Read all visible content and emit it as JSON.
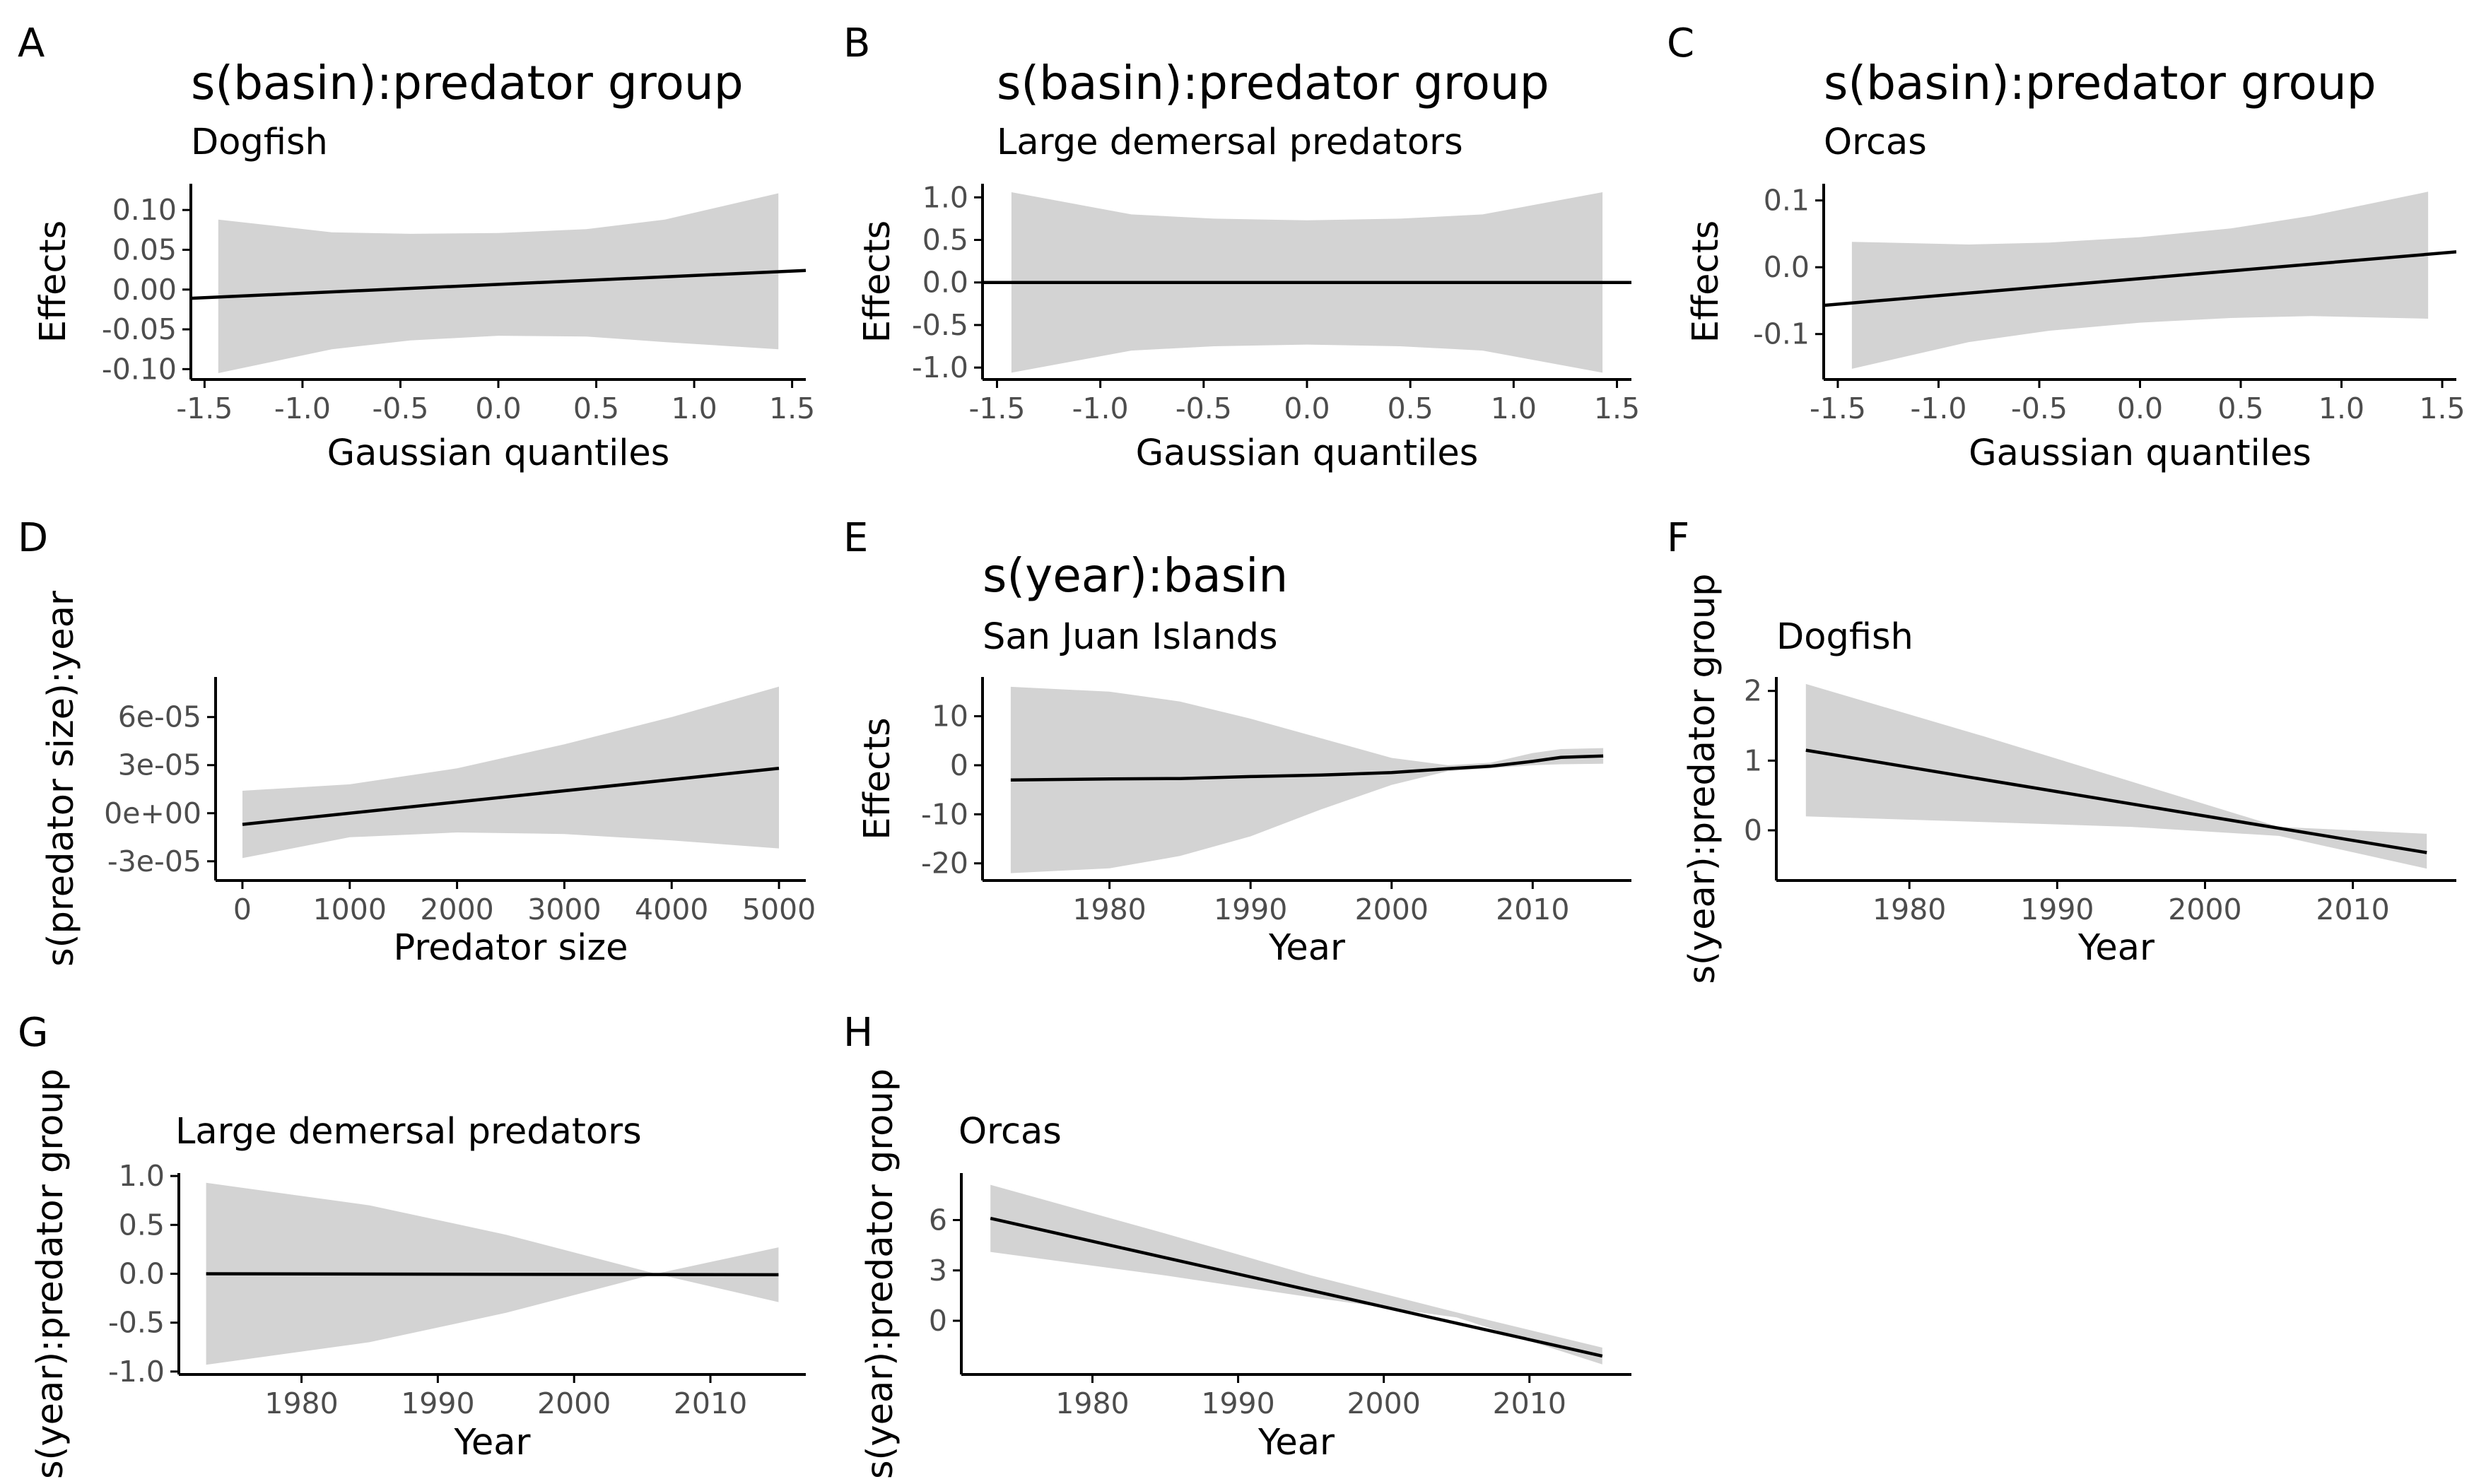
{
  "colors": {
    "band": "#d3d3d3",
    "line": "#000000",
    "axis": "#000000",
    "tick_text": "#4d4d4d"
  },
  "chart_data": [
    {
      "tag": "A",
      "type": "line",
      "title": "s(basin):predator group",
      "subtitle": "Dogfish",
      "xlabel": "Gaussian quantiles",
      "ylabel": "Effects",
      "xlim": [
        -1.57,
        1.57
      ],
      "ylim": [
        -0.113,
        0.133
      ],
      "xticks": [
        -1.5,
        -1.0,
        -0.5,
        0.0,
        0.5,
        1.0,
        1.5
      ],
      "xtick_labels": [
        "-1.5",
        "-1.0",
        "-0.5",
        "0.0",
        "0.5",
        "1.0",
        "1.5"
      ],
      "yticks": [
        -0.1,
        -0.05,
        0.0,
        0.05,
        0.1
      ],
      "ytick_labels": [
        "-0.10",
        "-0.05",
        "0.00",
        "0.05",
        "0.10"
      ],
      "line": {
        "x": [
          -1.57,
          1.57
        ],
        "y": [
          -0.011,
          0.024
        ]
      },
      "band": {
        "x": [
          -1.43,
          -0.85,
          -0.45,
          0.0,
          0.45,
          0.85,
          1.43
        ],
        "upper": [
          0.088,
          0.072,
          0.07,
          0.071,
          0.076,
          0.088,
          0.121
        ],
        "lower": [
          -0.105,
          -0.075,
          -0.064,
          -0.058,
          -0.059,
          -0.066,
          -0.075
        ]
      }
    },
    {
      "tag": "B",
      "type": "line",
      "title": "s(basin):predator group",
      "subtitle": "Large demersal predators",
      "xlabel": "Gaussian quantiles",
      "ylabel": "Effects",
      "xlim": [
        -1.57,
        1.57
      ],
      "ylim": [
        -1.14,
        1.16
      ],
      "xticks": [
        -1.5,
        -1.0,
        -0.5,
        0.0,
        0.5,
        1.0,
        1.5
      ],
      "xtick_labels": [
        "-1.5",
        "-1.0",
        "-0.5",
        "0.0",
        "0.5",
        "1.0",
        "1.5"
      ],
      "yticks": [
        -1.0,
        -0.5,
        0.0,
        0.5,
        1.0
      ],
      "ytick_labels": [
        "-1.0",
        "-0.5",
        "0.0",
        "0.5",
        "1.0"
      ],
      "line": {
        "x": [
          -1.57,
          1.57
        ],
        "y": [
          0.0,
          0.0
        ]
      },
      "band": {
        "x": [
          -1.43,
          -0.85,
          -0.45,
          0.0,
          0.45,
          0.85,
          1.43
        ],
        "upper": [
          1.06,
          0.8,
          0.75,
          0.73,
          0.75,
          0.8,
          1.06
        ],
        "lower": [
          -1.06,
          -0.8,
          -0.75,
          -0.73,
          -0.75,
          -0.8,
          -1.06
        ]
      }
    },
    {
      "tag": "C",
      "type": "line",
      "title": "s(basin):predator group",
      "subtitle": "Orcas",
      "xlabel": "Gaussian quantiles",
      "ylabel": "Effects",
      "xlim": [
        -1.57,
        1.57
      ],
      "ylim": [
        -0.168,
        0.125
      ],
      "xticks": [
        -1.5,
        -1.0,
        -0.5,
        0.0,
        0.5,
        1.0,
        1.5
      ],
      "xtick_labels": [
        "-1.5",
        "-1.0",
        "-0.5",
        "0.0",
        "0.5",
        "1.0",
        "1.5"
      ],
      "yticks": [
        -0.1,
        0.0,
        0.1
      ],
      "ytick_labels": [
        "-0.1",
        "0.0",
        "0.1"
      ],
      "line": {
        "x": [
          -1.57,
          1.57
        ],
        "y": [
          -0.057,
          0.023
        ]
      },
      "band": {
        "x": [
          -1.43,
          -0.85,
          -0.45,
          0.0,
          0.45,
          0.85,
          1.43
        ],
        "upper": [
          0.038,
          0.034,
          0.037,
          0.045,
          0.058,
          0.077,
          0.113
        ],
        "lower": [
          -0.152,
          -0.112,
          -0.095,
          -0.083,
          -0.076,
          -0.073,
          -0.077
        ]
      }
    },
    {
      "tag": "D",
      "type": "line",
      "title": "",
      "subtitle": "",
      "xlabel": "Predator size",
      "ylabel": "s(predator size):year",
      "xlim": [
        -250,
        5250
      ],
      "ylim": [
        -4.2e-05,
        8.5e-05
      ],
      "xticks": [
        0,
        1000,
        2000,
        3000,
        4000,
        5000
      ],
      "xtick_labels": [
        "0",
        "1000",
        "2000",
        "3000",
        "4000",
        "5000"
      ],
      "yticks": [
        -3e-05,
        0,
        3e-05,
        6e-05
      ],
      "ytick_labels": [
        "-3e-05",
        "0e+00",
        "3e-05",
        "6e-05"
      ],
      "line": {
        "x": [
          0,
          5000
        ],
        "y": [
          -7e-06,
          2.8e-05
        ]
      },
      "band": {
        "x": [
          0,
          1000,
          2000,
          3000,
          4000,
          5000
        ],
        "upper": [
          1.4e-05,
          1.8e-05,
          2.8e-05,
          4.3e-05,
          6e-05,
          7.9e-05
        ],
        "lower": [
          -2.8e-05,
          -1.5e-05,
          -1.2e-05,
          -1.3e-05,
          -1.7e-05,
          -2.2e-05
        ]
      }
    },
    {
      "tag": "E",
      "type": "line",
      "title": "s(year):basin",
      "subtitle": "San Juan Islands",
      "xlabel": "Year",
      "ylabel": "Effects",
      "xlim": [
        1971,
        2017
      ],
      "ylim": [
        -23.5,
        18
      ],
      "xticks": [
        1980,
        1990,
        2000,
        2010
      ],
      "xtick_labels": [
        "1980",
        "1990",
        "2000",
        "2010"
      ],
      "yticks": [
        -20,
        -10,
        0,
        10
      ],
      "ytick_labels": [
        "-20",
        "-10",
        "0",
        "10"
      ],
      "line": {
        "x": [
          1973,
          1980,
          1985,
          1990,
          1995,
          2000,
          2004,
          2007,
          2010,
          2012,
          2015
        ],
        "y": [
          -3.0,
          -2.8,
          -2.7,
          -2.3,
          -2.0,
          -1.5,
          -0.7,
          -0.2,
          0.8,
          1.6,
          1.9
        ]
      },
      "band": {
        "x": [
          1973,
          1980,
          1985,
          1990,
          1995,
          2000,
          2004,
          2007,
          2010,
          2012,
          2015
        ],
        "upper": [
          16,
          15,
          13,
          9.5,
          5.5,
          1.5,
          0.0,
          0.5,
          2.5,
          3.3,
          3.5
        ],
        "lower": [
          -22,
          -21,
          -18.5,
          -14.5,
          -9,
          -4,
          -1.2,
          -0.6,
          0.0,
          0.2,
          0.3
        ]
      }
    },
    {
      "tag": "F",
      "type": "line",
      "title": "",
      "subtitle": "Dogfish",
      "xlabel": "Year",
      "ylabel": "s(year):predator group",
      "xlim": [
        1971,
        2017
      ],
      "ylim": [
        -0.72,
        2.2
      ],
      "xticks": [
        1980,
        1990,
        2000,
        2010
      ],
      "xtick_labels": [
        "1980",
        "1990",
        "2000",
        "2010"
      ],
      "yticks": [
        0,
        1,
        2
      ],
      "ytick_labels": [
        "0",
        "1",
        "2"
      ],
      "line": {
        "x": [
          1973,
          2015
        ],
        "y": [
          1.15,
          -0.32
        ]
      },
      "band": {
        "x": [
          1973,
          1985,
          1995,
          2005,
          2015
        ],
        "upper": [
          2.1,
          1.35,
          0.7,
          0.05,
          -0.05
        ],
        "lower": [
          0.2,
          0.12,
          0.05,
          -0.08,
          -0.55
        ]
      }
    },
    {
      "tag": "G",
      "type": "line",
      "title": "",
      "subtitle": "Large demersal predators",
      "xlabel": "Year",
      "ylabel": "s(year):predator group",
      "xlim": [
        1971,
        2017
      ],
      "ylim": [
        -1.03,
        1.03
      ],
      "xticks": [
        1980,
        1990,
        2000,
        2010
      ],
      "xtick_labels": [
        "1980",
        "1990",
        "2000",
        "2010"
      ],
      "yticks": [
        -1.0,
        -0.5,
        0.0,
        0.5,
        1.0
      ],
      "ytick_labels": [
        "-1.0",
        "-0.5",
        "0.0",
        "0.5",
        "1.0"
      ],
      "line": {
        "x": [
          1973,
          2015
        ],
        "y": [
          0.0,
          -0.01
        ]
      },
      "band": {
        "x": [
          1973,
          1985,
          1995,
          2006,
          2015
        ],
        "upper": [
          0.93,
          0.7,
          0.4,
          0.0,
          0.27
        ],
        "lower": [
          -0.93,
          -0.7,
          -0.4,
          0.0,
          -0.29
        ]
      }
    },
    {
      "tag": "H",
      "type": "line",
      "title": "",
      "subtitle": "Orcas",
      "xlabel": "Year",
      "ylabel": "s(year):predator group",
      "xlim": [
        1971,
        2017
      ],
      "ylim": [
        -3.2,
        8.8
      ],
      "xticks": [
        1980,
        1990,
        2000,
        2010
      ],
      "xtick_labels": [
        "1980",
        "1990",
        "2000",
        "2010"
      ],
      "yticks": [
        0,
        3,
        6
      ],
      "ytick_labels": [
        "0",
        "3",
        "6"
      ],
      "line": {
        "x": [
          1973,
          2015
        ],
        "y": [
          6.1,
          -2.1
        ]
      },
      "band": {
        "x": [
          1973,
          1985,
          1995,
          2005,
          2015
        ],
        "upper": [
          8.1,
          5.2,
          2.7,
          0.5,
          -1.6
        ],
        "lower": [
          4.1,
          2.7,
          1.4,
          0.2,
          -2.6
        ]
      }
    }
  ]
}
